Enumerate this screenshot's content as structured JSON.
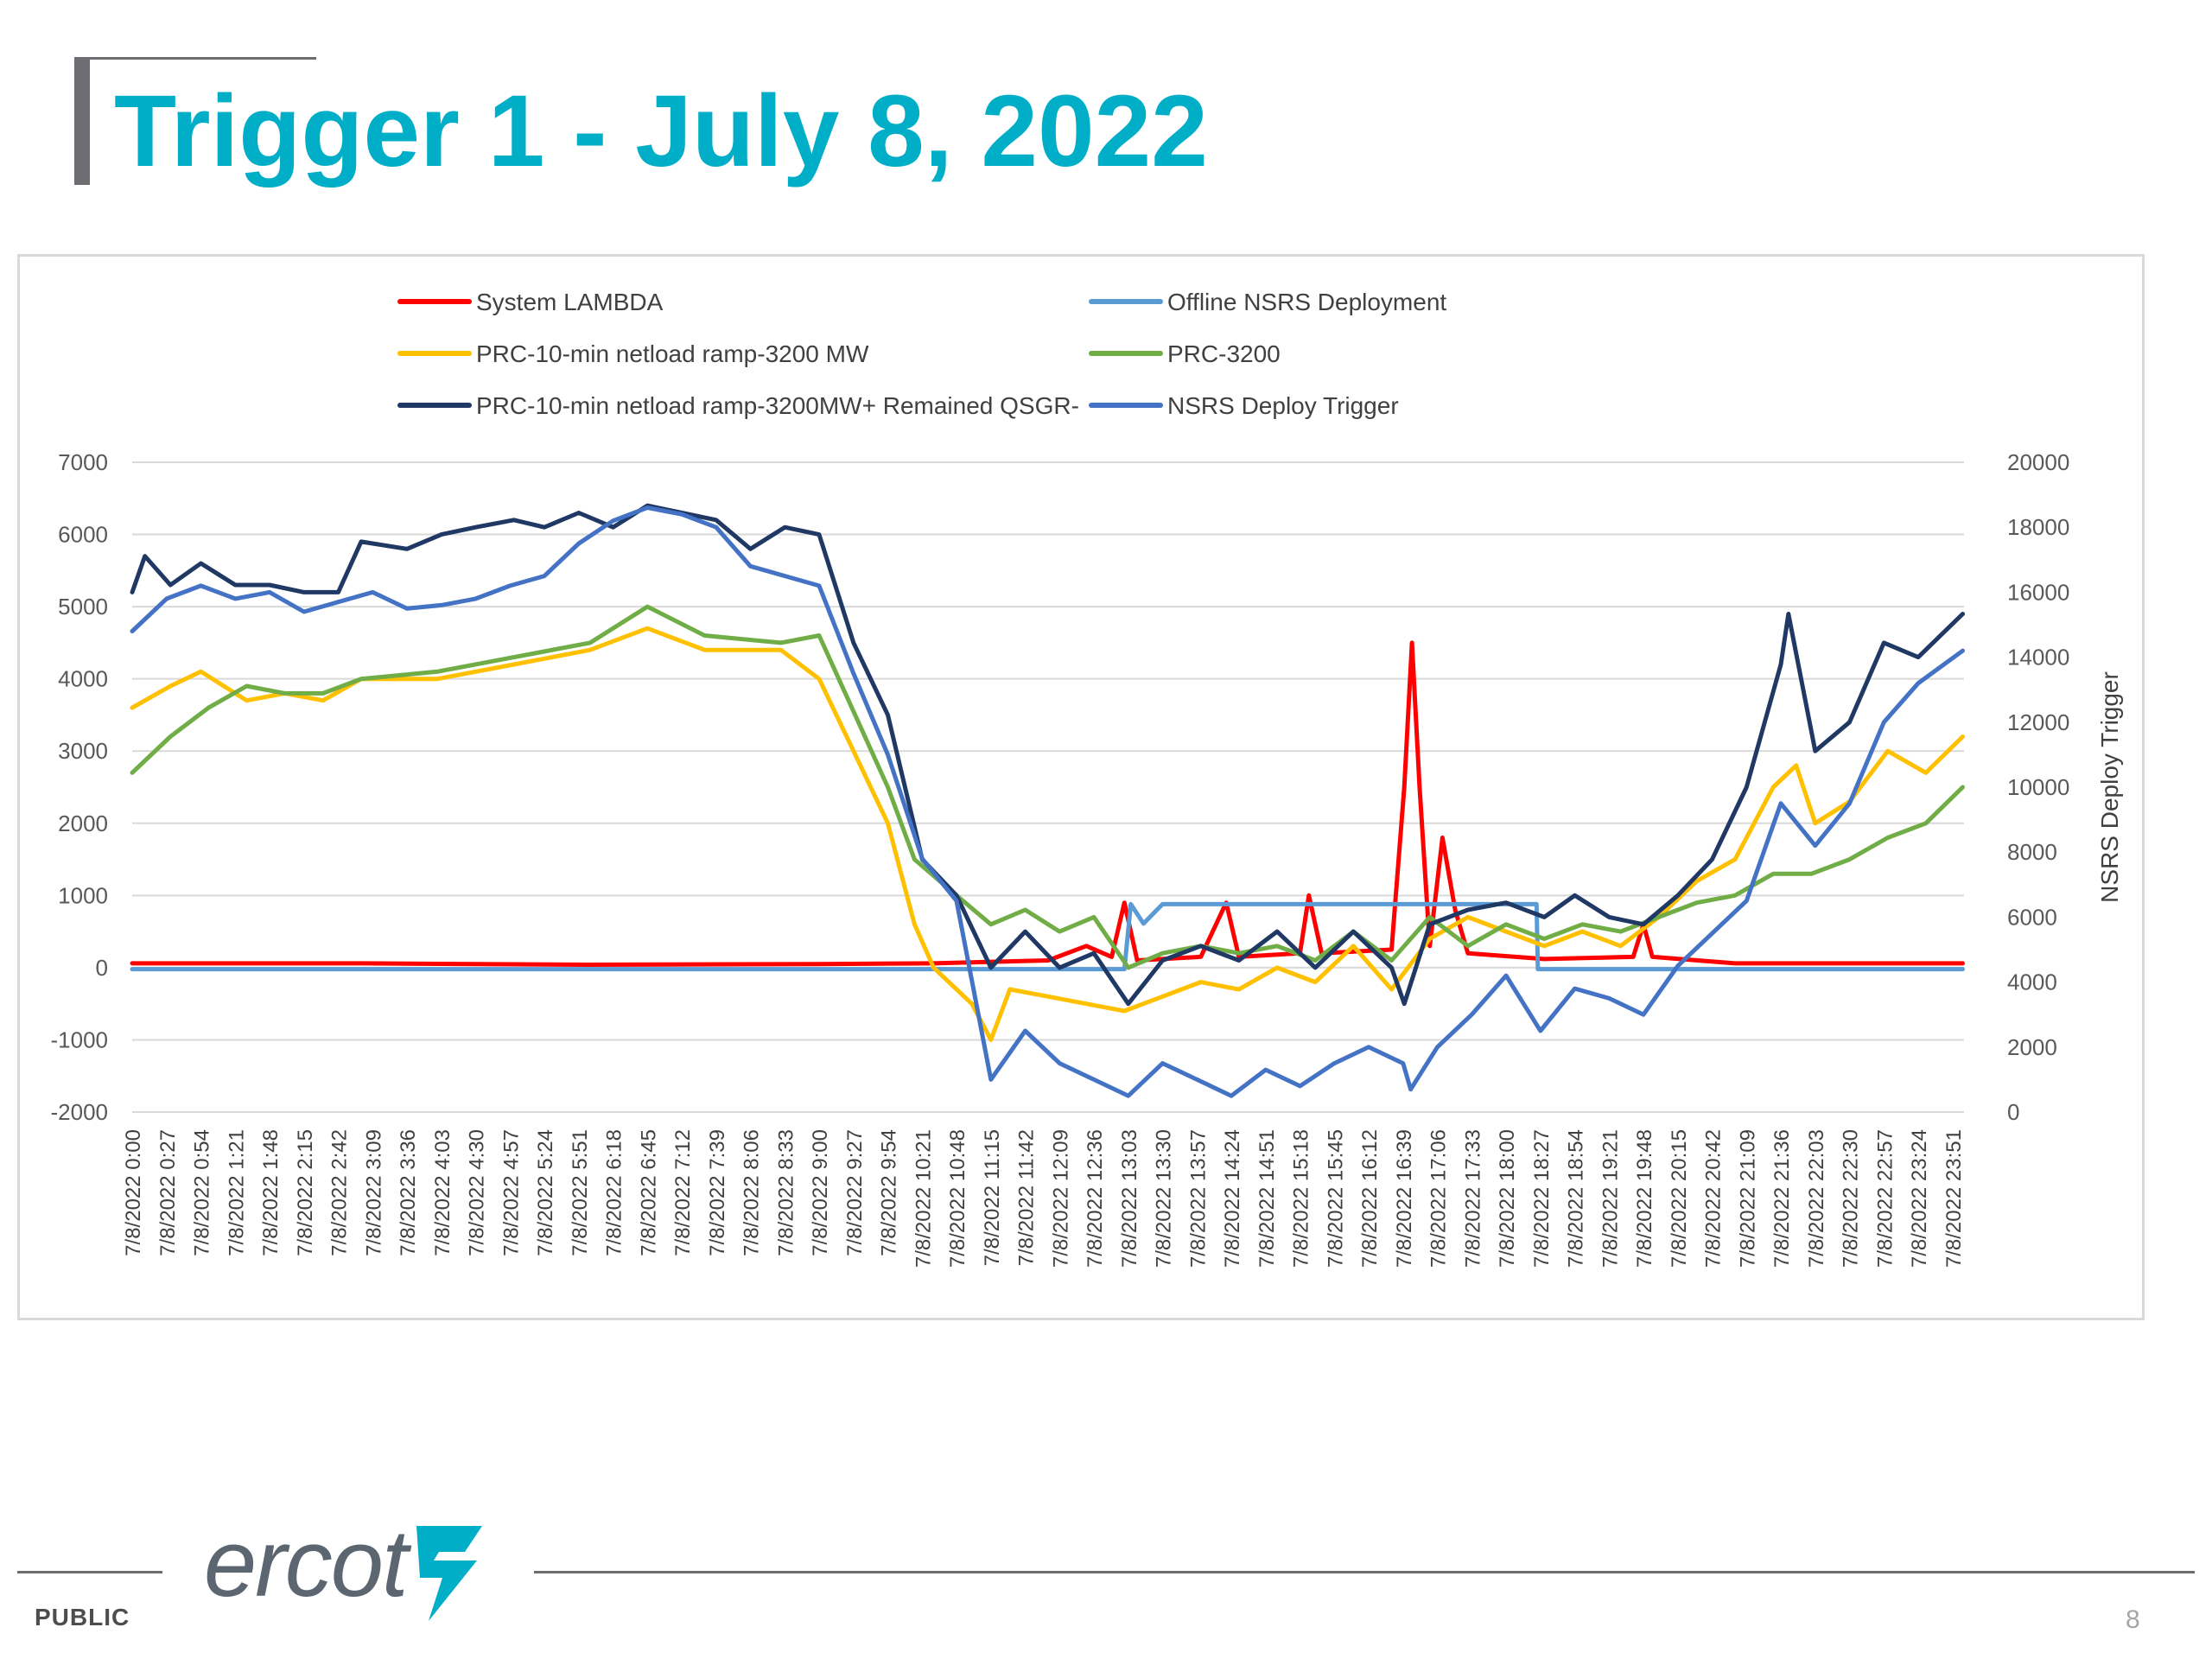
{
  "slide": {
    "title": "Trigger 1 - July 8, 2022",
    "classification": "PUBLIC",
    "page_number": "8",
    "logo_text": "ercot",
    "logo_icon": "ercot-lightning-mark-icon"
  },
  "colors": {
    "title": "#00aec7",
    "system_lambda": "#ff0000",
    "offline_nsrs": "#5b9bd5",
    "prc_ramp": "#ffc000",
    "prc_3200": "#70ad47",
    "prc_ramp_qsgr": "#203864",
    "nsrs_trigger": "#4472c4"
  },
  "chart_data": {
    "type": "line",
    "title": "",
    "xlabel": "",
    "ylabel_left": "",
    "ylabel_right": "NSRS Deploy Trigger",
    "left_axis": {
      "min": -2000,
      "max": 7000,
      "ticks": [
        "7000",
        "6000",
        "5000",
        "4000",
        "3000",
        "2000",
        "1000",
        "0",
        "-1000",
        "-2000"
      ]
    },
    "right_axis": {
      "min": 0,
      "max": 20000,
      "ticks": [
        "20000",
        "18000",
        "16000",
        "14000",
        "12000",
        "10000",
        "8000",
        "6000",
        "4000",
        "2000",
        "0"
      ]
    },
    "gridlines": "horizontal",
    "legend_position": "top",
    "x_tick_labels": [
      "7/8/2022 0:00",
      "7/8/2022 0:27",
      "7/8/2022 0:54",
      "7/8/2022 1:21",
      "7/8/2022 1:48",
      "7/8/2022 2:15",
      "7/8/2022 2:42",
      "7/8/2022 3:09",
      "7/8/2022 3:36",
      "7/8/2022 4:03",
      "7/8/2022 4:30",
      "7/8/2022 4:57",
      "7/8/2022 5:24",
      "7/8/2022 5:51",
      "7/8/2022 6:18",
      "7/8/2022 6:45",
      "7/8/2022 7:12",
      "7/8/2022 7:39",
      "7/8/2022 8:06",
      "7/8/2022 8:33",
      "7/8/2022 9:00",
      "7/8/2022 9:27",
      "7/8/2022 9:54",
      "7/8/2022 10:21",
      "7/8/2022 10:48",
      "7/8/2022 11:15",
      "7/8/2022 11:42",
      "7/8/2022 12:09",
      "7/8/2022 12:36",
      "7/8/2022 13:03",
      "7/8/2022 13:30",
      "7/8/2022 13:57",
      "7/8/2022 14:24",
      "7/8/2022 14:51",
      "7/8/2022 15:18",
      "7/8/2022 15:45",
      "7/8/2022 16:12",
      "7/8/2022 16:39",
      "7/8/2022 17:06",
      "7/8/2022 17:33",
      "7/8/2022 18:00",
      "7/8/2022 18:27",
      "7/8/2022 18:54",
      "7/8/2022 19:21",
      "7/8/2022 19:48",
      "7/8/2022 20:15",
      "7/8/2022 20:42",
      "7/8/2022 21:09",
      "7/8/2022 21:36",
      "7/8/2022 22:03",
      "7/8/2022 22:30",
      "7/8/2022 22:57",
      "7/8/2022 23:24",
      "7/8/2022 23:51"
    ],
    "legend": [
      {
        "name": "System LAMBDA",
        "color": "#ff0000"
      },
      {
        "name": "Offline NSRS Deployment",
        "color": "#5b9bd5"
      },
      {
        "name": "PRC-10-min netload ramp-3200 MW",
        "color": "#ffc000"
      },
      {
        "name": "PRC-3200",
        "color": "#70ad47"
      },
      {
        "name": "PRC-10-min netload ramp-3200MW+ Remained QSGR-",
        "color": "#203864"
      },
      {
        "name": "NSRS Deploy Trigger",
        "color": "#4472c4"
      }
    ],
    "series": [
      {
        "name": "System LAMBDA",
        "axis": "left",
        "color": "#ff0000",
        "points": [
          [
            "0:00",
            60
          ],
          [
            "3:00",
            60
          ],
          [
            "6:00",
            40
          ],
          [
            "9:00",
            50
          ],
          [
            "10:30",
            60
          ],
          [
            "12:00",
            100
          ],
          [
            "12:30",
            300
          ],
          [
            "12:50",
            150
          ],
          [
            "13:00",
            900
          ],
          [
            "13:10",
            100
          ],
          [
            "14:00",
            150
          ],
          [
            "14:20",
            900
          ],
          [
            "14:30",
            150
          ],
          [
            "15:18",
            200
          ],
          [
            "15:25",
            1000
          ],
          [
            "15:35",
            200
          ],
          [
            "16:30",
            250
          ],
          [
            "16:40",
            2500
          ],
          [
            "16:46",
            4500
          ],
          [
            "16:52",
            2500
          ],
          [
            "17:00",
            300
          ],
          [
            "17:10",
            1800
          ],
          [
            "17:20",
            800
          ],
          [
            "17:30",
            200
          ],
          [
            "18:30",
            120
          ],
          [
            "19:40",
            150
          ],
          [
            "19:48",
            600
          ],
          [
            "19:55",
            150
          ],
          [
            "21:00",
            60
          ],
          [
            "23:59",
            60
          ]
        ]
      },
      {
        "name": "Offline NSRS Deployment",
        "axis": "right",
        "color": "#5b9bd5",
        "points": [
          [
            "0:00",
            4400
          ],
          [
            "13:00",
            4400
          ],
          [
            "13:05",
            6400
          ],
          [
            "13:15",
            5800
          ],
          [
            "13:25",
            6200
          ],
          [
            "13:30",
            6400
          ],
          [
            "18:24",
            6400
          ],
          [
            "18:25",
            4400
          ],
          [
            "23:59",
            4400
          ]
        ]
      },
      {
        "name": "PRC-10-min netload ramp-3200 MW",
        "axis": "left",
        "color": "#ffc000",
        "points": [
          [
            "0:00",
            3600
          ],
          [
            "0:30",
            3900
          ],
          [
            "0:54",
            4100
          ],
          [
            "1:30",
            3700
          ],
          [
            "2:00",
            3800
          ],
          [
            "2:30",
            3700
          ],
          [
            "3:00",
            4000
          ],
          [
            "4:00",
            4000
          ],
          [
            "5:00",
            4200
          ],
          [
            "6:00",
            4400
          ],
          [
            "6:45",
            4700
          ],
          [
            "7:30",
            4400
          ],
          [
            "8:30",
            4400
          ],
          [
            "9:00",
            4000
          ],
          [
            "9:27",
            3000
          ],
          [
            "9:54",
            2000
          ],
          [
            "10:15",
            600
          ],
          [
            "10:30",
            0
          ],
          [
            "11:00",
            -500
          ],
          [
            "11:15",
            -1000
          ],
          [
            "11:30",
            -300
          ],
          [
            "12:00",
            -400
          ],
          [
            "12:30",
            -500
          ],
          [
            "13:00",
            -600
          ],
          [
            "13:30",
            -400
          ],
          [
            "14:00",
            -200
          ],
          [
            "14:30",
            -300
          ],
          [
            "15:00",
            0
          ],
          [
            "15:30",
            -200
          ],
          [
            "16:00",
            300
          ],
          [
            "16:30",
            -300
          ],
          [
            "17:00",
            400
          ],
          [
            "17:30",
            700
          ],
          [
            "18:00",
            500
          ],
          [
            "18:30",
            300
          ],
          [
            "19:00",
            500
          ],
          [
            "19:30",
            300
          ],
          [
            "20:00",
            700
          ],
          [
            "20:30",
            1200
          ],
          [
            "21:00",
            1500
          ],
          [
            "21:30",
            2500
          ],
          [
            "21:48",
            2800
          ],
          [
            "22:03",
            2000
          ],
          [
            "22:30",
            2300
          ],
          [
            "23:00",
            3000
          ],
          [
            "23:30",
            2700
          ],
          [
            "23:59",
            3200
          ]
        ]
      },
      {
        "name": "PRC-3200",
        "axis": "left",
        "color": "#70ad47",
        "points": [
          [
            "0:00",
            2700
          ],
          [
            "0:30",
            3200
          ],
          [
            "1:00",
            3600
          ],
          [
            "1:30",
            3900
          ],
          [
            "2:00",
            3800
          ],
          [
            "2:30",
            3800
          ],
          [
            "3:00",
            4000
          ],
          [
            "4:00",
            4100
          ],
          [
            "5:00",
            4300
          ],
          [
            "6:00",
            4500
          ],
          [
            "6:45",
            5000
          ],
          [
            "7:30",
            4600
          ],
          [
            "8:30",
            4500
          ],
          [
            "9:00",
            4600
          ],
          [
            "9:54",
            2500
          ],
          [
            "10:15",
            1500
          ],
          [
            "10:48",
            1000
          ],
          [
            "11:15",
            600
          ],
          [
            "11:42",
            800
          ],
          [
            "12:09",
            500
          ],
          [
            "12:36",
            700
          ],
          [
            "13:03",
            0
          ],
          [
            "13:30",
            200
          ],
          [
            "14:00",
            300
          ],
          [
            "14:30",
            200
          ],
          [
            "15:00",
            300
          ],
          [
            "15:30",
            100
          ],
          [
            "16:00",
            500
          ],
          [
            "16:30",
            100
          ],
          [
            "17:00",
            700
          ],
          [
            "17:30",
            300
          ],
          [
            "18:00",
            600
          ],
          [
            "18:30",
            400
          ],
          [
            "19:00",
            600
          ],
          [
            "19:30",
            500
          ],
          [
            "20:00",
            700
          ],
          [
            "20:30",
            900
          ],
          [
            "21:00",
            1000
          ],
          [
            "21:30",
            1300
          ],
          [
            "22:00",
            1300
          ],
          [
            "22:30",
            1500
          ],
          [
            "23:00",
            1800
          ],
          [
            "23:30",
            2000
          ],
          [
            "23:59",
            2500
          ]
        ]
      },
      {
        "name": "PRC-10-min netload ramp-3200MW+ Remained QSGR-",
        "axis": "left",
        "color": "#203864",
        "points": [
          [
            "0:00",
            5200
          ],
          [
            "0:10",
            5700
          ],
          [
            "0:30",
            5300
          ],
          [
            "0:54",
            5600
          ],
          [
            "1:21",
            5300
          ],
          [
            "1:48",
            5300
          ],
          [
            "2:15",
            5200
          ],
          [
            "2:42",
            5200
          ],
          [
            "3:00",
            5900
          ],
          [
            "3:36",
            5800
          ],
          [
            "4:03",
            6000
          ],
          [
            "4:30",
            6100
          ],
          [
            "5:00",
            6200
          ],
          [
            "5:24",
            6100
          ],
          [
            "5:51",
            6300
          ],
          [
            "6:18",
            6100
          ],
          [
            "6:45",
            6400
          ],
          [
            "7:12",
            6300
          ],
          [
            "7:39",
            6200
          ],
          [
            "8:06",
            5800
          ],
          [
            "8:33",
            6100
          ],
          [
            "9:00",
            6000
          ],
          [
            "9:27",
            4500
          ],
          [
            "9:54",
            3500
          ],
          [
            "10:21",
            1500
          ],
          [
            "10:48",
            1000
          ],
          [
            "11:15",
            0
          ],
          [
            "11:42",
            500
          ],
          [
            "12:09",
            0
          ],
          [
            "12:36",
            200
          ],
          [
            "13:03",
            -500
          ],
          [
            "13:30",
            100
          ],
          [
            "14:00",
            300
          ],
          [
            "14:30",
            100
          ],
          [
            "15:00",
            500
          ],
          [
            "15:30",
            0
          ],
          [
            "16:00",
            500
          ],
          [
            "16:30",
            0
          ],
          [
            "16:40",
            -500
          ],
          [
            "17:00",
            600
          ],
          [
            "17:30",
            800
          ],
          [
            "18:00",
            900
          ],
          [
            "18:30",
            700
          ],
          [
            "18:54",
            1000
          ],
          [
            "19:21",
            700
          ],
          [
            "19:48",
            600
          ],
          [
            "20:15",
            1000
          ],
          [
            "20:42",
            1500
          ],
          [
            "21:09",
            2500
          ],
          [
            "21:36",
            4200
          ],
          [
            "21:42",
            4900
          ],
          [
            "22:03",
            3000
          ],
          [
            "22:30",
            3400
          ],
          [
            "22:57",
            4500
          ],
          [
            "23:24",
            4300
          ],
          [
            "23:59",
            4900
          ]
        ]
      },
      {
        "name": "NSRS Deploy Trigger",
        "axis": "right",
        "color": "#4472c4",
        "points": [
          [
            "0:00",
            14800
          ],
          [
            "0:27",
            15800
          ],
          [
            "0:54",
            16200
          ],
          [
            "1:21",
            15800
          ],
          [
            "1:48",
            16000
          ],
          [
            "2:15",
            15400
          ],
          [
            "2:42",
            15700
          ],
          [
            "3:09",
            16000
          ],
          [
            "3:36",
            15500
          ],
          [
            "4:03",
            15600
          ],
          [
            "4:30",
            15800
          ],
          [
            "4:57",
            16200
          ],
          [
            "5:24",
            16500
          ],
          [
            "5:51",
            17500
          ],
          [
            "6:18",
            18200
          ],
          [
            "6:45",
            18600
          ],
          [
            "7:12",
            18400
          ],
          [
            "7:39",
            18000
          ],
          [
            "8:06",
            16800
          ],
          [
            "8:33",
            16500
          ],
          [
            "9:00",
            16200
          ],
          [
            "9:27",
            13500
          ],
          [
            "9:54",
            11000
          ],
          [
            "10:21",
            7800
          ],
          [
            "10:48",
            6500
          ],
          [
            "11:15",
            1000
          ],
          [
            "11:42",
            2500
          ],
          [
            "12:09",
            1500
          ],
          [
            "12:36",
            1000
          ],
          [
            "13:03",
            500
          ],
          [
            "13:30",
            1500
          ],
          [
            "13:57",
            1000
          ],
          [
            "14:24",
            500
          ],
          [
            "14:51",
            1300
          ],
          [
            "15:18",
            800
          ],
          [
            "15:45",
            1500
          ],
          [
            "16:12",
            2000
          ],
          [
            "16:39",
            1500
          ],
          [
            "16:45",
            700
          ],
          [
            "17:06",
            2000
          ],
          [
            "17:33",
            3000
          ],
          [
            "18:00",
            4200
          ],
          [
            "18:27",
            2500
          ],
          [
            "18:54",
            3800
          ],
          [
            "19:21",
            3500
          ],
          [
            "19:48",
            3000
          ],
          [
            "20:15",
            4500
          ],
          [
            "20:42",
            5500
          ],
          [
            "21:09",
            6500
          ],
          [
            "21:36",
            9500
          ],
          [
            "22:03",
            8200
          ],
          [
            "22:30",
            9500
          ],
          [
            "22:57",
            12000
          ],
          [
            "23:24",
            13200
          ],
          [
            "23:59",
            14200
          ]
        ]
      }
    ]
  }
}
